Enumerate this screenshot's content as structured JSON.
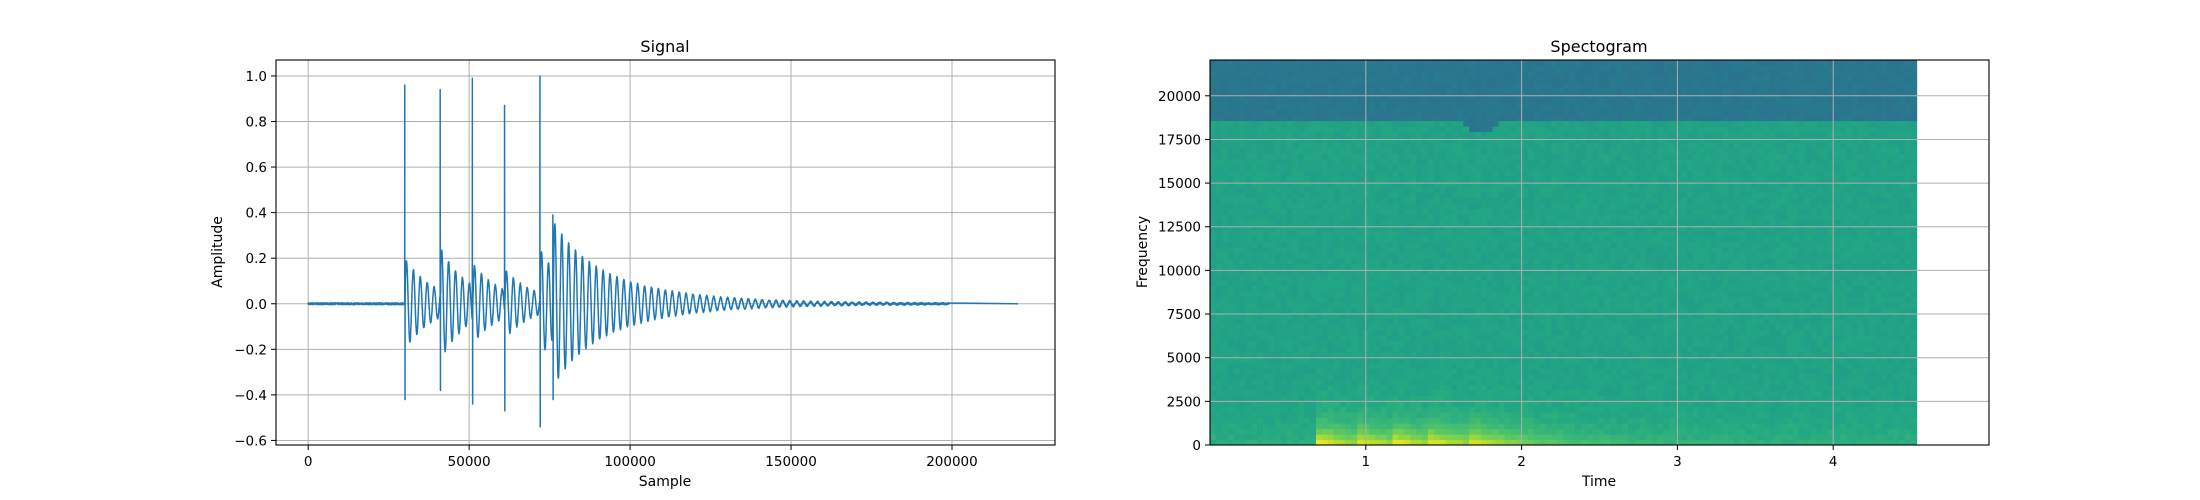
{
  "chart_data": [
    {
      "type": "line",
      "title": "Signal",
      "xlabel": "Sample",
      "ylabel": "Amplitude",
      "xlim": [
        -10000,
        232000
      ],
      "ylim": [
        -0.62,
        1.07
      ],
      "xticks": [
        0,
        50000,
        100000,
        150000,
        200000
      ],
      "xtick_labels": [
        "0",
        "50000",
        "100000",
        "150000",
        "200000"
      ],
      "yticks": [
        -0.6,
        -0.4,
        -0.2,
        0.0,
        0.2,
        0.4,
        0.6,
        0.8,
        1.0
      ],
      "ytick_labels": [
        "−0.6",
        "−0.4",
        "−0.2",
        "0.0",
        "0.2",
        "0.4",
        "0.6",
        "0.8",
        "1.0"
      ],
      "grid": true,
      "color": "#1f77b4",
      "series": [
        {
          "events": [
            {
              "x": 30000,
              "peak": 0.96,
              "trough": -0.42
            },
            {
              "x": 41000,
              "peak": 0.94,
              "trough": -0.38
            },
            {
              "x": 51000,
              "peak": 0.99,
              "trough": -0.44
            },
            {
              "x": 61000,
              "peak": 0.87,
              "trough": -0.47
            },
            {
              "x": 72000,
              "peak": 1.0,
              "trough": -0.54
            },
            {
              "x": 76000,
              "peak": 0.39,
              "trough": -0.42
            }
          ],
          "signal_end": 199000,
          "flat_end": 220500
        }
      ]
    },
    {
      "type": "heatmap",
      "title": "Spectogram",
      "xlabel": "Time",
      "ylabel": "Frequency",
      "xlim": [
        0,
        5.0
      ],
      "ylim": [
        0,
        22050
      ],
      "data_xlim": [
        0,
        4.535
      ],
      "xticks": [
        1,
        2,
        3,
        4
      ],
      "xtick_labels": [
        "1",
        "2",
        "3",
        "4"
      ],
      "yticks": [
        0,
        2500,
        5000,
        7500,
        10000,
        12500,
        15000,
        17500,
        20000
      ],
      "ytick_labels": [
        "0",
        "2500",
        "5000",
        "7500",
        "10000",
        "12500",
        "15000",
        "17500",
        "20000"
      ],
      "grid": true,
      "colormap": "viridis",
      "onset_times": [
        0.69,
        0.93,
        1.17,
        1.39,
        1.65
      ],
      "cutoff_frequency": 18700
    }
  ]
}
